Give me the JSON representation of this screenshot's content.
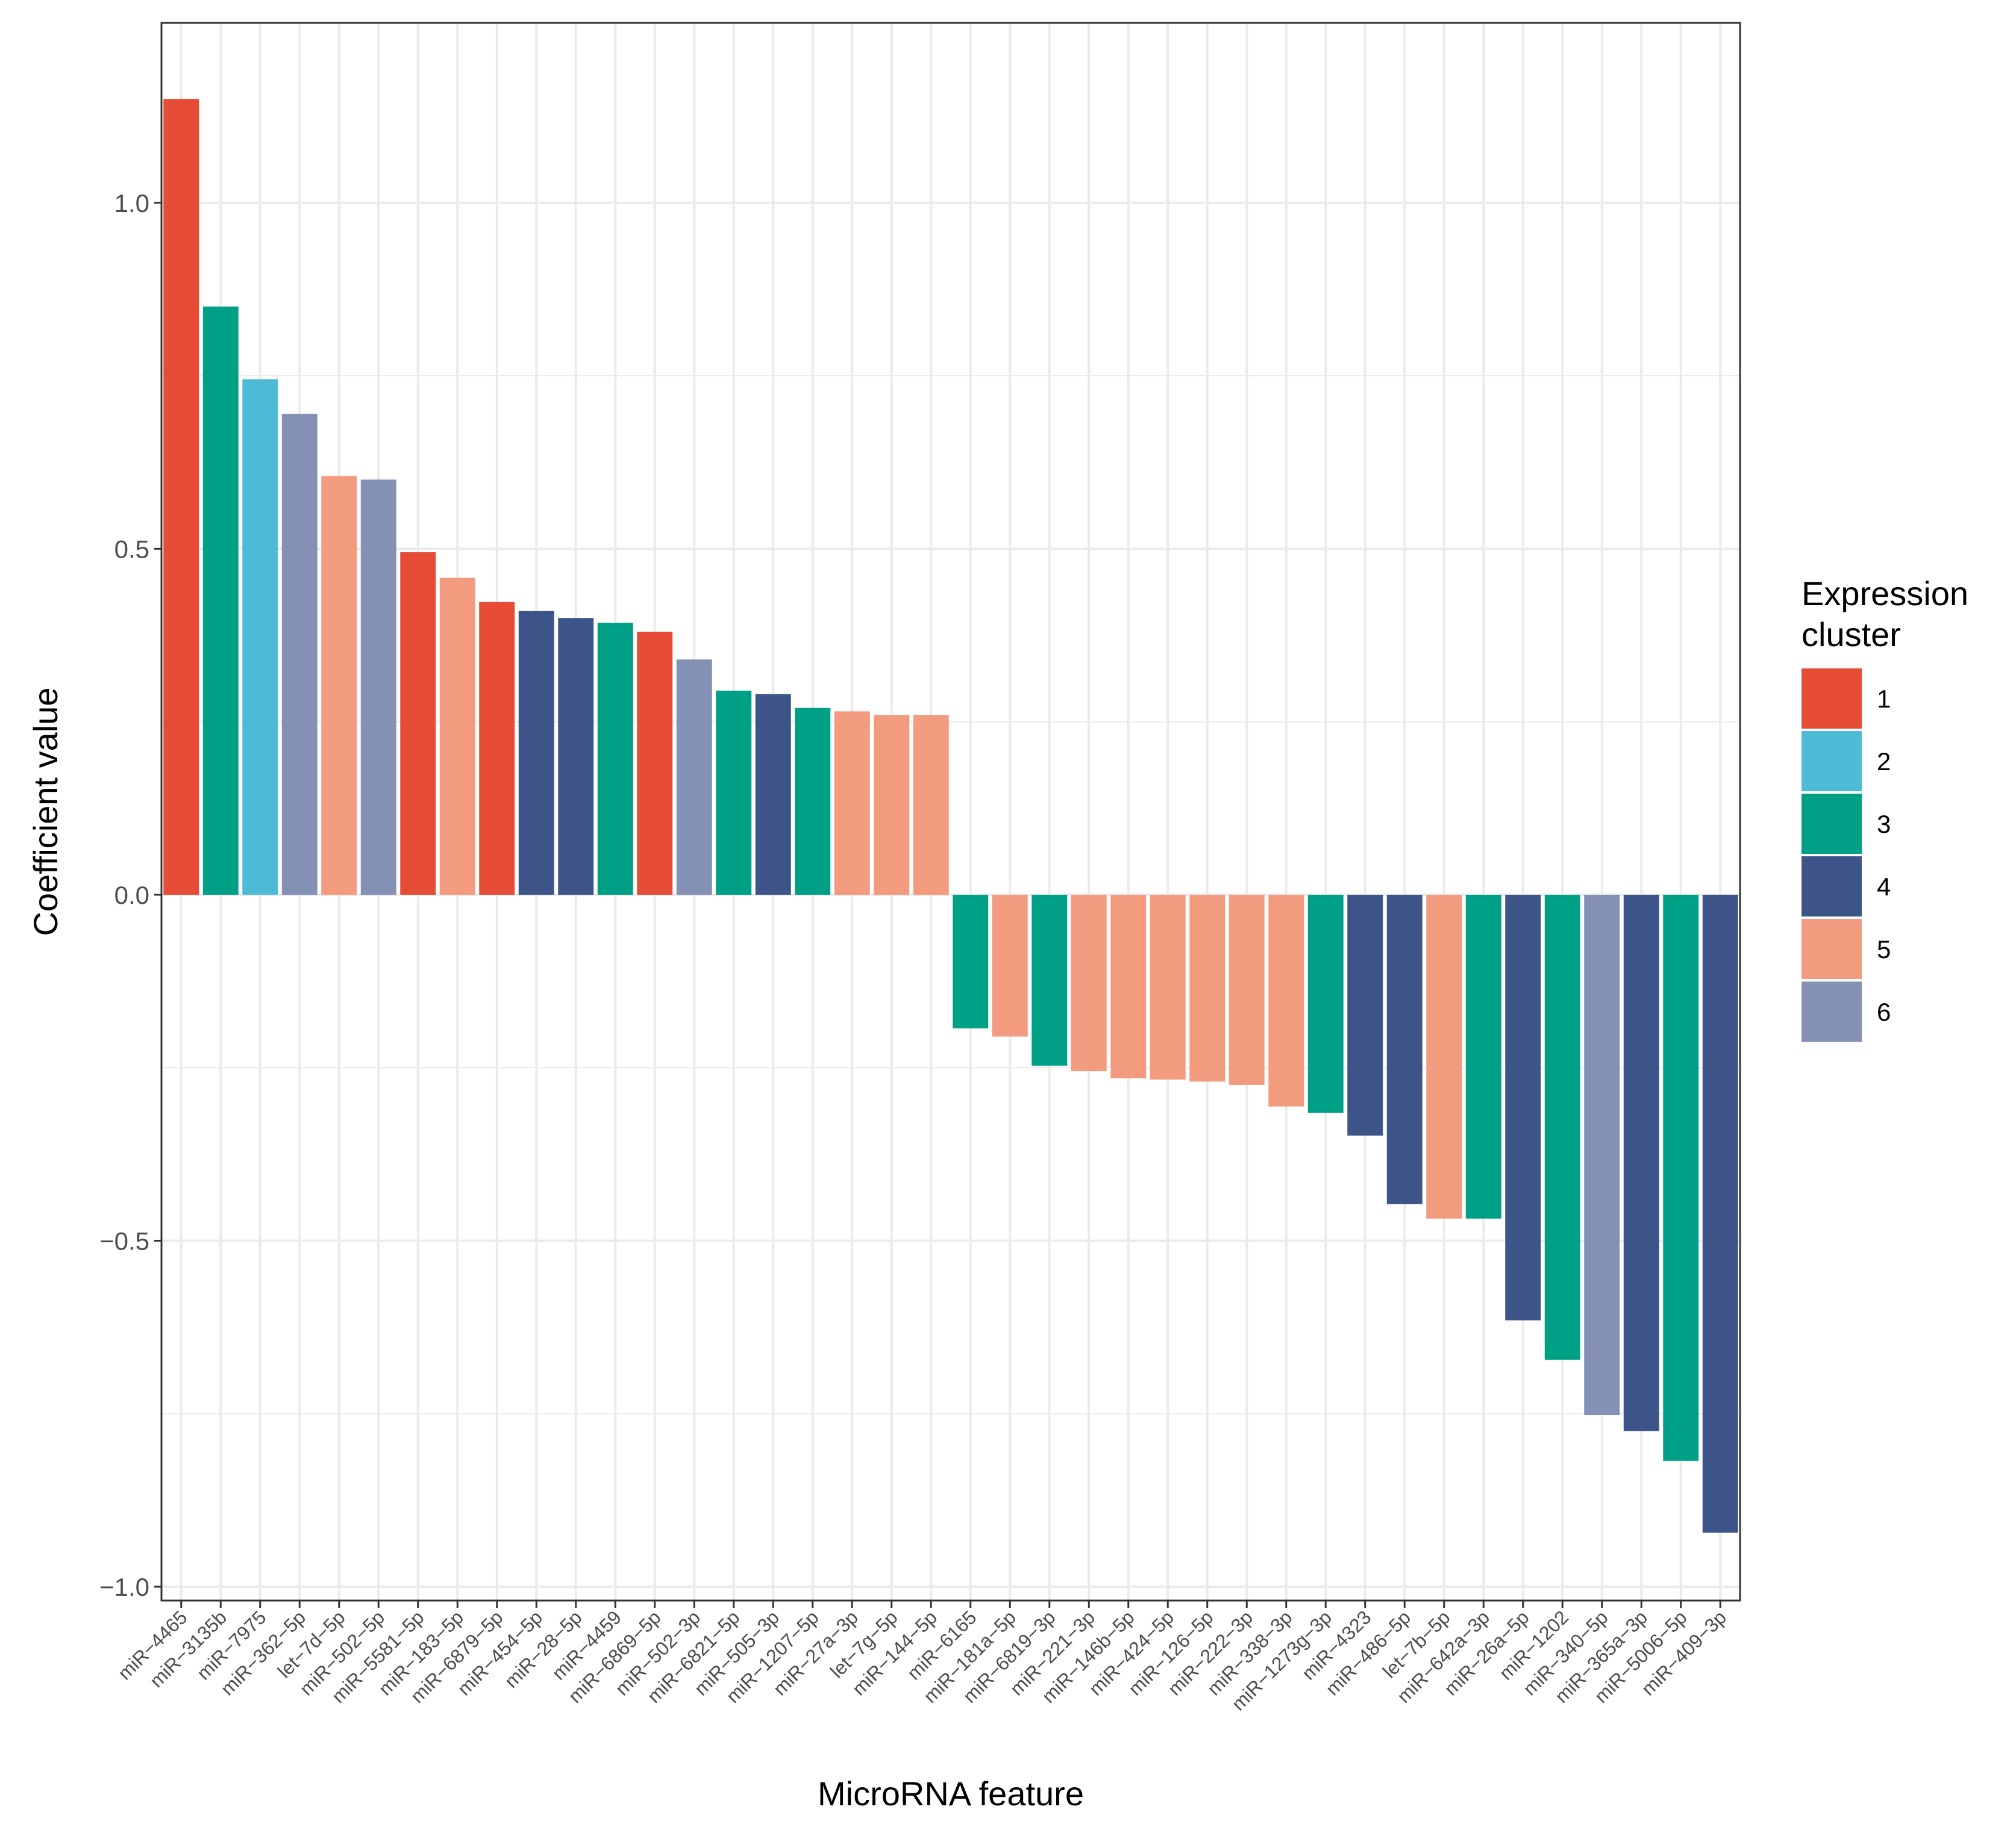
{
  "chart_data": {
    "type": "bar",
    "xlabel": "MicroRNA feature",
    "ylabel": "Coefficient value",
    "ylim": [
      -1.02,
      1.26
    ],
    "yticks": [
      -1.0,
      -0.5,
      0.0,
      0.5,
      1.0
    ],
    "ytick_labels": [
      "−1.0",
      "−0.5",
      "0.0",
      "0.5",
      "1.0"
    ],
    "grid": true,
    "legend": {
      "title": "Expression cluster",
      "title_lines": [
        "Expression",
        "cluster"
      ],
      "placement": "right",
      "entries": [
        {
          "label": "1",
          "color": "#E64B35"
        },
        {
          "label": "2",
          "color": "#4DBBD5"
        },
        {
          "label": "3",
          "color": "#00A087"
        },
        {
          "label": "4",
          "color": "#3C5488"
        },
        {
          "label": "5",
          "color": "#F39B7F"
        },
        {
          "label": "6",
          "color": "#8491B4"
        }
      ]
    },
    "categories": [
      "miR−4465",
      "miR−3135b",
      "miR−7975",
      "miR−362−5p",
      "let−7d−5p",
      "miR−502−5p",
      "miR−5581−5p",
      "miR−183−5p",
      "miR−6879−5p",
      "miR−454−5p",
      "miR−28−5p",
      "miR−4459",
      "miR−6869−5p",
      "miR−502−3p",
      "miR−6821−5p",
      "miR−505−3p",
      "miR−1207−5p",
      "miR−27a−3p",
      "let−7g−5p",
      "miR−144−5p",
      "miR−6165",
      "miR−181a−5p",
      "miR−6819−3p",
      "miR−221−3p",
      "miR−146b−5p",
      "miR−424−5p",
      "miR−126−5p",
      "miR−222−3p",
      "miR−338−3p",
      "miR−1273g−3p",
      "miR−4323",
      "miR−486−5p",
      "let−7b−5p",
      "miR−642a−3p",
      "miR−26a−5p",
      "miR−1202",
      "miR−340−5p",
      "miR−365a−3p",
      "miR−5006−5p",
      "miR−409−3p"
    ],
    "values": [
      1.15,
      0.85,
      0.745,
      0.695,
      0.605,
      0.6,
      0.495,
      0.458,
      0.423,
      0.41,
      0.4,
      0.393,
      0.38,
      0.34,
      0.295,
      0.29,
      0.27,
      0.265,
      0.26,
      0.26,
      -0.193,
      -0.205,
      -0.247,
      -0.255,
      -0.265,
      -0.267,
      -0.27,
      -0.275,
      -0.306,
      -0.315,
      -0.348,
      -0.447,
      -0.468,
      -0.468,
      -0.615,
      -0.672,
      -0.752,
      -0.775,
      -0.818,
      -0.922
    ],
    "clusters": [
      "1",
      "3",
      "2",
      "6",
      "5",
      "6",
      "1",
      "5",
      "1",
      "4",
      "4",
      "3",
      "1",
      "6",
      "3",
      "4",
      "3",
      "5",
      "5",
      "5",
      "3",
      "5",
      "3",
      "5",
      "5",
      "5",
      "5",
      "5",
      "5",
      "3",
      "4",
      "4",
      "5",
      "3",
      "4",
      "3",
      "6",
      "4",
      "3",
      "4"
    ]
  }
}
